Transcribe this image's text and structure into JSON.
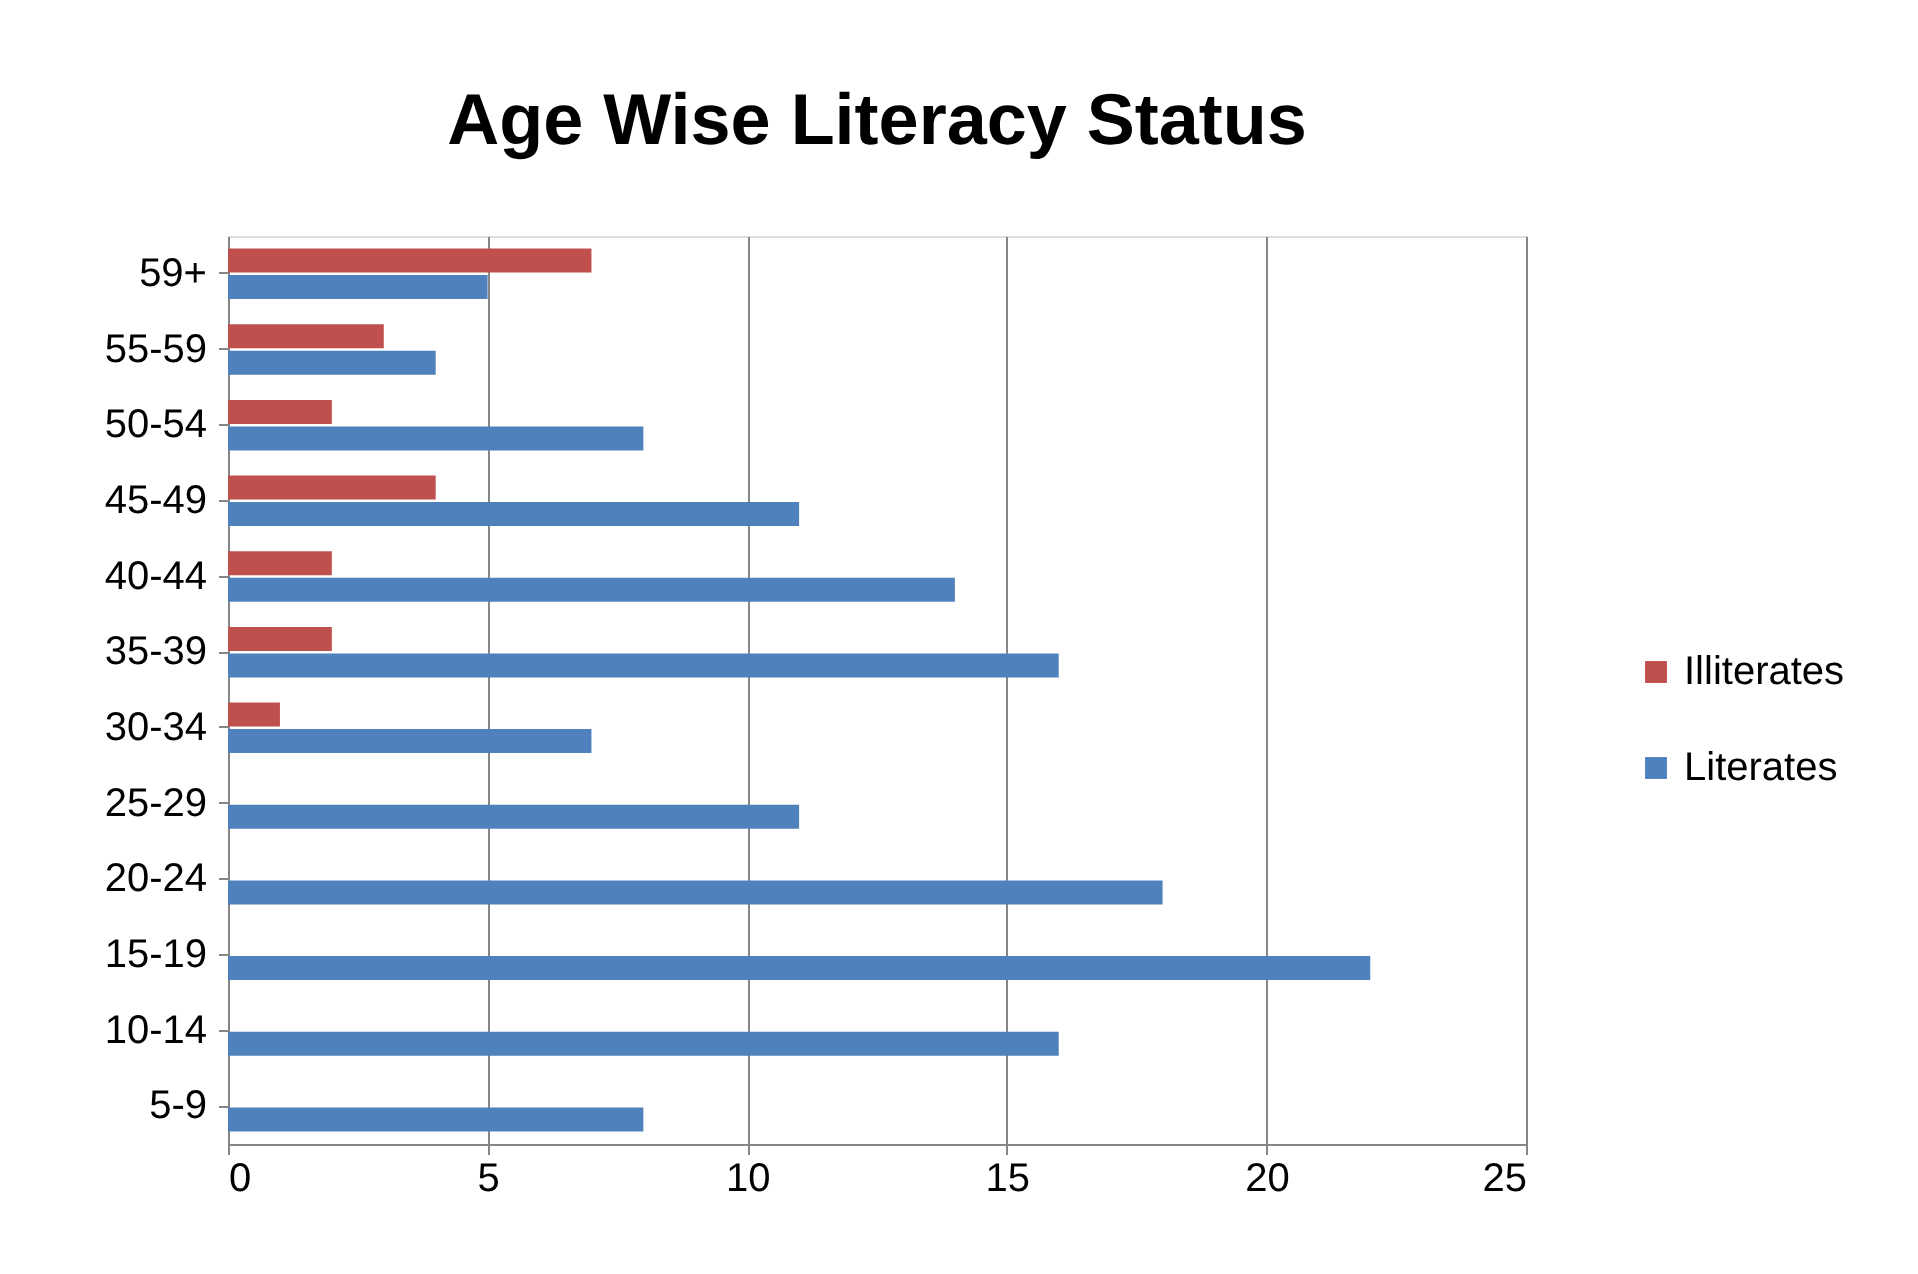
{
  "chart_data": {
    "type": "bar",
    "orientation": "horizontal",
    "title": "Age Wise Literacy Status",
    "categories": [
      "59+",
      "55-59",
      "50-54",
      "45-49",
      "40-44",
      "35-39",
      "30-34",
      "25-29",
      "20-24",
      "15-19",
      "10-14",
      "5-9"
    ],
    "series": [
      {
        "name": "Illiterates",
        "color": "#c0504d",
        "values": [
          7,
          3,
          2,
          4,
          2,
          2,
          1,
          null,
          null,
          null,
          null,
          null
        ]
      },
      {
        "name": "Literates",
        "color": "#4f81bd",
        "values": [
          5,
          4,
          8,
          11,
          14,
          16,
          7,
          11,
          18,
          22,
          16,
          8
        ]
      }
    ],
    "xlim": [
      0,
      25
    ],
    "xticks": [
      0,
      5,
      10,
      15,
      20,
      25
    ],
    "grid": "x",
    "legend": "right"
  }
}
